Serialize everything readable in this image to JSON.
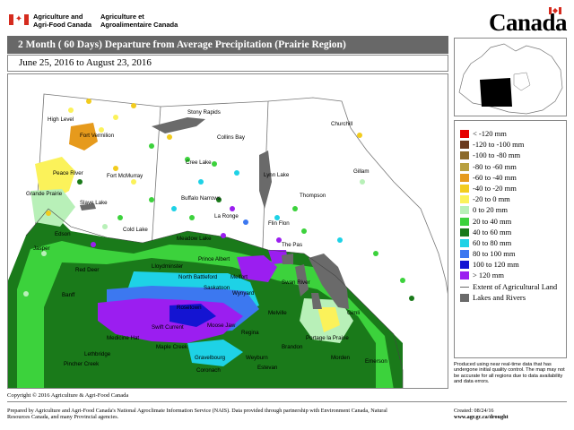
{
  "header": {
    "dept_en_line1": "Agriculture and",
    "dept_en_line2": "Agri-Food Canada",
    "dept_fr_line1": "Agriculture et",
    "dept_fr_line2": "Agroalimentaire Canada",
    "wordmark": "Canada"
  },
  "map": {
    "title": "2 Month ( 60 Days) Departure from Average Precipitation (Prairie Region)",
    "date_range": "June 25, 2016 to August 23, 2016",
    "cities": [
      {
        "name": "Stony Rapids"
      },
      {
        "name": "Churchill"
      },
      {
        "name": "High Level"
      },
      {
        "name": "Fort Vermilion"
      },
      {
        "name": "Collins Bay"
      },
      {
        "name": "Cree Lake"
      },
      {
        "name": "Fort McMurray"
      },
      {
        "name": "Peace River"
      },
      {
        "name": "Lynn Lake"
      },
      {
        "name": "Gillam"
      },
      {
        "name": "Grande Prairie"
      },
      {
        "name": "Slave Lake"
      },
      {
        "name": "Buffalo Narrows"
      },
      {
        "name": "Thompson"
      },
      {
        "name": "La Ronge"
      },
      {
        "name": "Flin Flon"
      },
      {
        "name": "Cold Lake"
      },
      {
        "name": "Edson"
      },
      {
        "name": "Meadow Lake"
      },
      {
        "name": "The Pas"
      },
      {
        "name": "Jasper"
      },
      {
        "name": "Prince Albert"
      },
      {
        "name": "Lloydminster"
      },
      {
        "name": "Red Deer"
      },
      {
        "name": "North Battleford"
      },
      {
        "name": "Melfort"
      },
      {
        "name": "Swan River"
      },
      {
        "name": "Saskatoon"
      },
      {
        "name": "Wynyard"
      },
      {
        "name": "Banff"
      },
      {
        "name": "Rosetown"
      },
      {
        "name": "Gimli"
      },
      {
        "name": "Melville"
      },
      {
        "name": "Swift Current"
      },
      {
        "name": "Moose Jaw"
      },
      {
        "name": "Regina"
      },
      {
        "name": "Medicine Hat"
      },
      {
        "name": "Portage la Prairie"
      },
      {
        "name": "Brandon"
      },
      {
        "name": "Maple Creek"
      },
      {
        "name": "Gravelbourg"
      },
      {
        "name": "Weyburn"
      },
      {
        "name": "Estevan"
      },
      {
        "name": "Coronach"
      },
      {
        "name": "Lethbridge"
      },
      {
        "name": "Morden"
      },
      {
        "name": "Emerson"
      },
      {
        "name": "Pincher Creek"
      }
    ]
  },
  "legend": {
    "items": [
      {
        "label": "< -120 mm",
        "color": "#e60000"
      },
      {
        "label": "-120 to -100 mm",
        "color": "#6b3a1e"
      },
      {
        "label": "-100 to -80 mm",
        "color": "#8c6a2a"
      },
      {
        "label": "-80 to -60 mm",
        "color": "#b8a040"
      },
      {
        "label": "-60 to -40 mm",
        "color": "#e69a1c"
      },
      {
        "label": "-40 to -20 mm",
        "color": "#f2cc1e"
      },
      {
        "label": "-20 to 0 mm",
        "color": "#fbf25a"
      },
      {
        "label": "0 to 20 mm",
        "color": "#b8f0b8"
      },
      {
        "label": "20 to 40 mm",
        "color": "#3cd23c"
      },
      {
        "label": "40 to 60 mm",
        "color": "#1a7a1a"
      },
      {
        "label": "60 to 80 mm",
        "color": "#1ed2e6"
      },
      {
        "label": "80 to 100 mm",
        "color": "#3c78f0"
      },
      {
        "label": "100 to 120 mm",
        "color": "#1414d2"
      },
      {
        "label": "> 120 mm",
        "color": "#9b1ef0"
      }
    ],
    "extent_label": "Extent of Agricultural Land",
    "lakes_label": "Lakes and Rivers",
    "lakes_color": "#6a6a6a"
  },
  "disclaimer": "Produced using near real-time data that has undergone initial quality control. The map may not be accurate for all regions due to data availability and data errors.",
  "copyright": "Copyright © 2016 Agriculture & Agri-Food Canada",
  "footer": {
    "text": "Prepared by Agriculture and Agri-Food Canada's National Agroclimate Information Service (NAIS). Data provided through partnership with Environment Canada, Natural Resources Canada, and many Provincial agencies.",
    "created": "Created: 08/24/16",
    "url": "www.agr.gc.ca/drought"
  }
}
